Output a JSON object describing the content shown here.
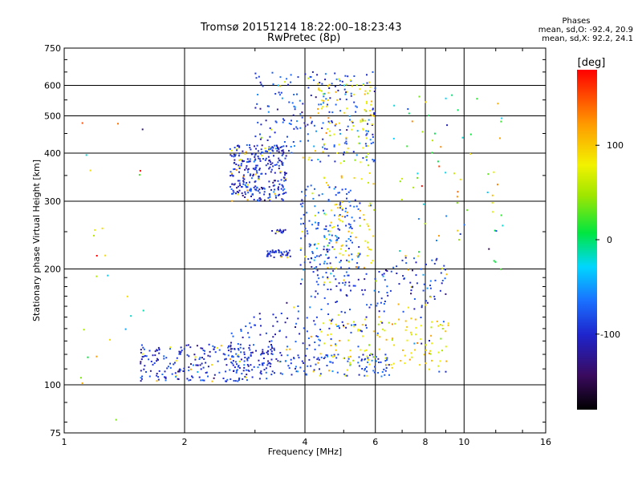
{
  "title": "Tromsø 20151214 18:22:00–18:23:43",
  "subtitle": "RwPretec (8p)",
  "stats": {
    "header": "Phases",
    "o_line": "mean, sd,O: -92.4, 20.9",
    "x_line": "mean, sd,X:  92.2, 24.1"
  },
  "chart_data": {
    "type": "scatter",
    "xlabel": "Frequency [MHz]",
    "ylabel": "Stationary phase Virtual Height [km]",
    "x_scale": "log",
    "y_scale": "log",
    "xlim": [
      1,
      16
    ],
    "ylim": [
      75,
      750
    ],
    "x_ticks": [
      1,
      2,
      4,
      6,
      8,
      10,
      16
    ],
    "y_ticks": [
      75,
      100,
      200,
      300,
      400,
      500,
      600,
      750
    ],
    "x_gridlines": [
      2,
      4,
      6,
      8,
      10
    ],
    "y_gridlines": [
      100,
      200,
      300,
      400,
      500,
      600
    ],
    "colorbar": {
      "label": "[deg]",
      "range": [
        -180,
        180
      ],
      "ticks": [
        -100,
        0,
        100
      ]
    },
    "clusters": [
      {
        "name": "E trace",
        "xlo": 1.55,
        "xhi": 3.4,
        "ylo": 102,
        "yhi": 128,
        "n": 260,
        "phase": -95,
        "spread": 25
      },
      {
        "name": "E trace high",
        "xlo": 3.4,
        "xhi": 6.5,
        "ylo": 105,
        "yhi": 120,
        "n": 110,
        "phase": -85,
        "spread": 25
      },
      {
        "name": "Es yellow",
        "xlo": 4.2,
        "xhi": 9.2,
        "ylo": 108,
        "yhi": 150,
        "n": 130,
        "phase": 85,
        "spread": 30
      },
      {
        "name": "F rising",
        "xlo": 2.6,
        "xhi": 9.0,
        "ylo": 120,
        "yhi": 200,
        "n": 240,
        "phase": -90,
        "spread": 25
      },
      {
        "name": "F1 layer",
        "xlo": 2.6,
        "xhi": 3.6,
        "ylo": 300,
        "yhi": 420,
        "n": 300,
        "phase": -95,
        "spread": 25
      },
      {
        "name": "F2 layer",
        "xlo": 3.0,
        "xhi": 6.0,
        "ylo": 380,
        "yhi": 650,
        "n": 230,
        "phase": -85,
        "spread": 30
      },
      {
        "name": "F2 yellow",
        "xlo": 4.3,
        "xhi": 6.0,
        "ylo": 330,
        "yhi": 620,
        "n": 90,
        "phase": 85,
        "spread": 30
      },
      {
        "name": "mid column",
        "xlo": 3.9,
        "xhi": 5.5,
        "ylo": 180,
        "yhi": 330,
        "n": 200,
        "phase": -80,
        "spread": 30
      },
      {
        "name": "mid yellow",
        "xlo": 4.5,
        "xhi": 6.0,
        "ylo": 200,
        "yhi": 300,
        "n": 60,
        "phase": 90,
        "spread": 30
      },
      {
        "name": "ledge 220",
        "xlo": 3.2,
        "xhi": 3.7,
        "ylo": 214,
        "yhi": 224,
        "n": 40,
        "phase": -95,
        "spread": 15
      },
      {
        "name": "ledge 250",
        "xlo": 3.3,
        "xhi": 3.6,
        "ylo": 247,
        "yhi": 253,
        "n": 14,
        "phase": -95,
        "spread": 15
      },
      {
        "name": "high freq",
        "xlo": 6.5,
        "xhi": 12.5,
        "ylo": 190,
        "yhi": 600,
        "n": 70,
        "phase": 40,
        "spread": 90
      },
      {
        "name": "low freq",
        "xlo": 1.0,
        "xhi": 1.6,
        "ylo": 80,
        "yhi": 520,
        "n": 25,
        "phase": 60,
        "spread": 90
      }
    ]
  }
}
